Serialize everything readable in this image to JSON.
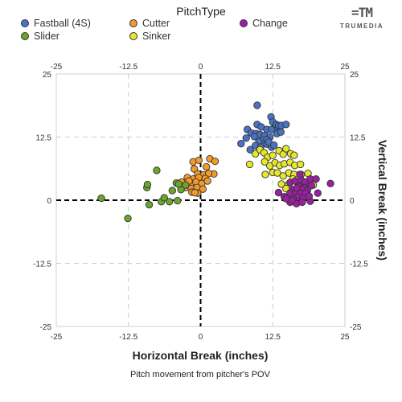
{
  "legend": {
    "title": "PitchType",
    "items": [
      {
        "name": "Fastball (4S)",
        "color": "#4a72c4"
      },
      {
        "name": "Cutter",
        "color": "#f29a2e"
      },
      {
        "name": "Change",
        "color": "#9b1fa3"
      },
      {
        "name": "Slider",
        "color": "#6aa62a"
      },
      {
        "name": "Sinker",
        "color": "#e6e62a"
      }
    ]
  },
  "logo": {
    "mark": "=TM",
    "text": "TRUMEDIA"
  },
  "chart_data": {
    "type": "scatter",
    "title": "",
    "xlabel": "Horizontal Break (inches)",
    "ylabel": "Vertical Break (inches)",
    "caption": "Pitch movement from pitcher's POV",
    "xlim": [
      -25,
      25
    ],
    "ylim": [
      -25,
      25
    ],
    "xticks": [
      "-25",
      "-12.5",
      "0",
      "12.5",
      "25"
    ],
    "yticks": [
      "25",
      "12.5",
      "0",
      "-12.5",
      "-25"
    ],
    "grid": true,
    "legend_position": "top",
    "series": [
      {
        "name": "Fastball (4S)",
        "color": "#4a72c4",
        "points": [
          [
            9.8,
            18.8
          ],
          [
            8.1,
            14
          ],
          [
            9.8,
            15
          ],
          [
            10.5,
            14.5
          ],
          [
            11.5,
            14
          ],
          [
            12.2,
            16.5
          ],
          [
            12.5,
            15.5
          ],
          [
            12.8,
            14.3
          ],
          [
            13.1,
            15
          ],
          [
            13.5,
            14.8
          ],
          [
            14,
            14.8
          ],
          [
            14.8,
            15
          ],
          [
            8.8,
            13.3
          ],
          [
            9.6,
            13.2
          ],
          [
            10.3,
            13
          ],
          [
            11.1,
            12.8
          ],
          [
            12,
            12.5
          ],
          [
            13.2,
            13.2
          ],
          [
            13.9,
            13.5
          ],
          [
            12.3,
            14
          ],
          [
            9.3,
            12.6
          ],
          [
            10.7,
            11.9
          ],
          [
            11.5,
            12
          ],
          [
            10.1,
            11.6
          ],
          [
            11.5,
            11.1
          ],
          [
            12.3,
            10.5
          ],
          [
            7,
            11.2
          ],
          [
            7.9,
            12.3
          ],
          [
            9.5,
            10.8
          ],
          [
            10.4,
            10.5
          ],
          [
            8.6,
            10
          ],
          [
            11.8,
            11.5
          ],
          [
            12.7,
            10.9
          ]
        ]
      },
      {
        "name": "Sinker",
        "color": "#e6e62a",
        "points": [
          [
            8.5,
            7.1
          ],
          [
            9.5,
            9.2
          ],
          [
            10.3,
            10
          ],
          [
            11,
            9.4
          ],
          [
            11.6,
            8.5
          ],
          [
            12.5,
            8.9
          ],
          [
            13.6,
            9.8
          ],
          [
            14.3,
            9.1
          ],
          [
            14.8,
            10.2
          ],
          [
            15.6,
            9.2
          ],
          [
            16.2,
            8.9
          ],
          [
            11.1,
            7.6
          ],
          [
            12,
            6.8
          ],
          [
            12.9,
            7.4
          ],
          [
            13.7,
            6.9
          ],
          [
            14.5,
            7.2
          ],
          [
            15.5,
            7.5
          ],
          [
            16.3,
            6.9
          ],
          [
            17.3,
            7.1
          ],
          [
            11.2,
            5.1
          ],
          [
            12.5,
            5.5
          ],
          [
            13.3,
            5.4
          ],
          [
            14.3,
            4.8
          ],
          [
            15.3,
            5.4
          ],
          [
            16.2,
            5.1
          ],
          [
            17.4,
            5.1
          ],
          [
            18.6,
            5.3
          ],
          [
            14,
            3.2
          ],
          [
            15.2,
            3.1
          ],
          [
            16.8,
            3.5
          ],
          [
            18.1,
            3.3
          ],
          [
            19.5,
            3
          ],
          [
            15.8,
            1.9
          ],
          [
            17.5,
            1.5
          ],
          [
            14.8,
            2.3
          ],
          [
            16,
            4.2
          ]
        ]
      },
      {
        "name": "Change",
        "color": "#9b1fa3",
        "points": [
          [
            15.5,
            3.5
          ],
          [
            16.4,
            3.8
          ],
          [
            17.4,
            4
          ],
          [
            18.1,
            3.6
          ],
          [
            19,
            4.2
          ],
          [
            17,
            2.7
          ],
          [
            18,
            2.5
          ],
          [
            19.2,
            2.9
          ],
          [
            16,
            2.1
          ],
          [
            16.7,
            2.4
          ],
          [
            17.7,
            2.1
          ],
          [
            18.5,
            1.9
          ],
          [
            15.5,
            1.4
          ],
          [
            16.4,
            1.2
          ],
          [
            17.3,
            1.3
          ],
          [
            18.2,
            1.4
          ],
          [
            16.8,
            0.6
          ],
          [
            17.7,
            0.4
          ],
          [
            16,
            0.3
          ],
          [
            15.5,
            -0.4
          ],
          [
            16.6,
            -0.7
          ],
          [
            17.6,
            -0.4
          ],
          [
            19,
            -0.2
          ],
          [
            13.5,
            1.5
          ],
          [
            14.5,
            0.7
          ],
          [
            15.8,
            -0.1
          ],
          [
            20.3,
            1.4
          ],
          [
            22.5,
            3.3
          ],
          [
            20,
            4.2
          ],
          [
            17.2,
            5.1
          ],
          [
            14.8,
            0.3
          ],
          [
            18.8,
            0.8
          ]
        ]
      },
      {
        "name": "Cutter",
        "color": "#f29a2e",
        "points": [
          [
            1.6,
            8.2
          ],
          [
            2.5,
            7.7
          ],
          [
            -1.3,
            7.6
          ],
          [
            -0.3,
            7.9
          ],
          [
            -1.1,
            6.2
          ],
          [
            1,
            6.6
          ],
          [
            2.3,
            5.2
          ],
          [
            -0.5,
            5.2
          ],
          [
            0.5,
            5
          ],
          [
            1.4,
            5.3
          ],
          [
            -2.3,
            4.5
          ],
          [
            -1.3,
            4.2
          ],
          [
            -0.3,
            4.5
          ],
          [
            0.8,
            4.3
          ],
          [
            -2.8,
            3.5
          ],
          [
            -1.8,
            3.2
          ],
          [
            -0.8,
            3.6
          ],
          [
            0.2,
            3.3
          ],
          [
            -2.6,
            2.5
          ],
          [
            -1.6,
            2.3
          ],
          [
            -0.6,
            2.5
          ],
          [
            0.4,
            2.2
          ],
          [
            -1.5,
            1.6
          ],
          [
            -0.5,
            1.4
          ],
          [
            -3.3,
            3.6
          ],
          [
            -2,
            3.8
          ],
          [
            1.2,
            3.8
          ],
          [
            -1,
            1.5
          ]
        ]
      },
      {
        "name": "Slider",
        "color": "#6aa62a",
        "points": [
          [
            -17.2,
            0.4
          ],
          [
            -12.6,
            -3.6
          ],
          [
            -9.3,
            2.5
          ],
          [
            -9.2,
            3.1
          ],
          [
            -7.6,
            5.9
          ],
          [
            -8.9,
            -0.9
          ],
          [
            -6.8,
            -0.3
          ],
          [
            -6.3,
            0.5
          ],
          [
            -5.4,
            -0.3
          ],
          [
            -4.9,
            1.9
          ],
          [
            -4.2,
            3.4
          ],
          [
            -3.4,
            2.1
          ],
          [
            -4,
            -0.1
          ],
          [
            -3.8,
            3.2
          ],
          [
            -2.6,
            3
          ]
        ]
      }
    ]
  }
}
